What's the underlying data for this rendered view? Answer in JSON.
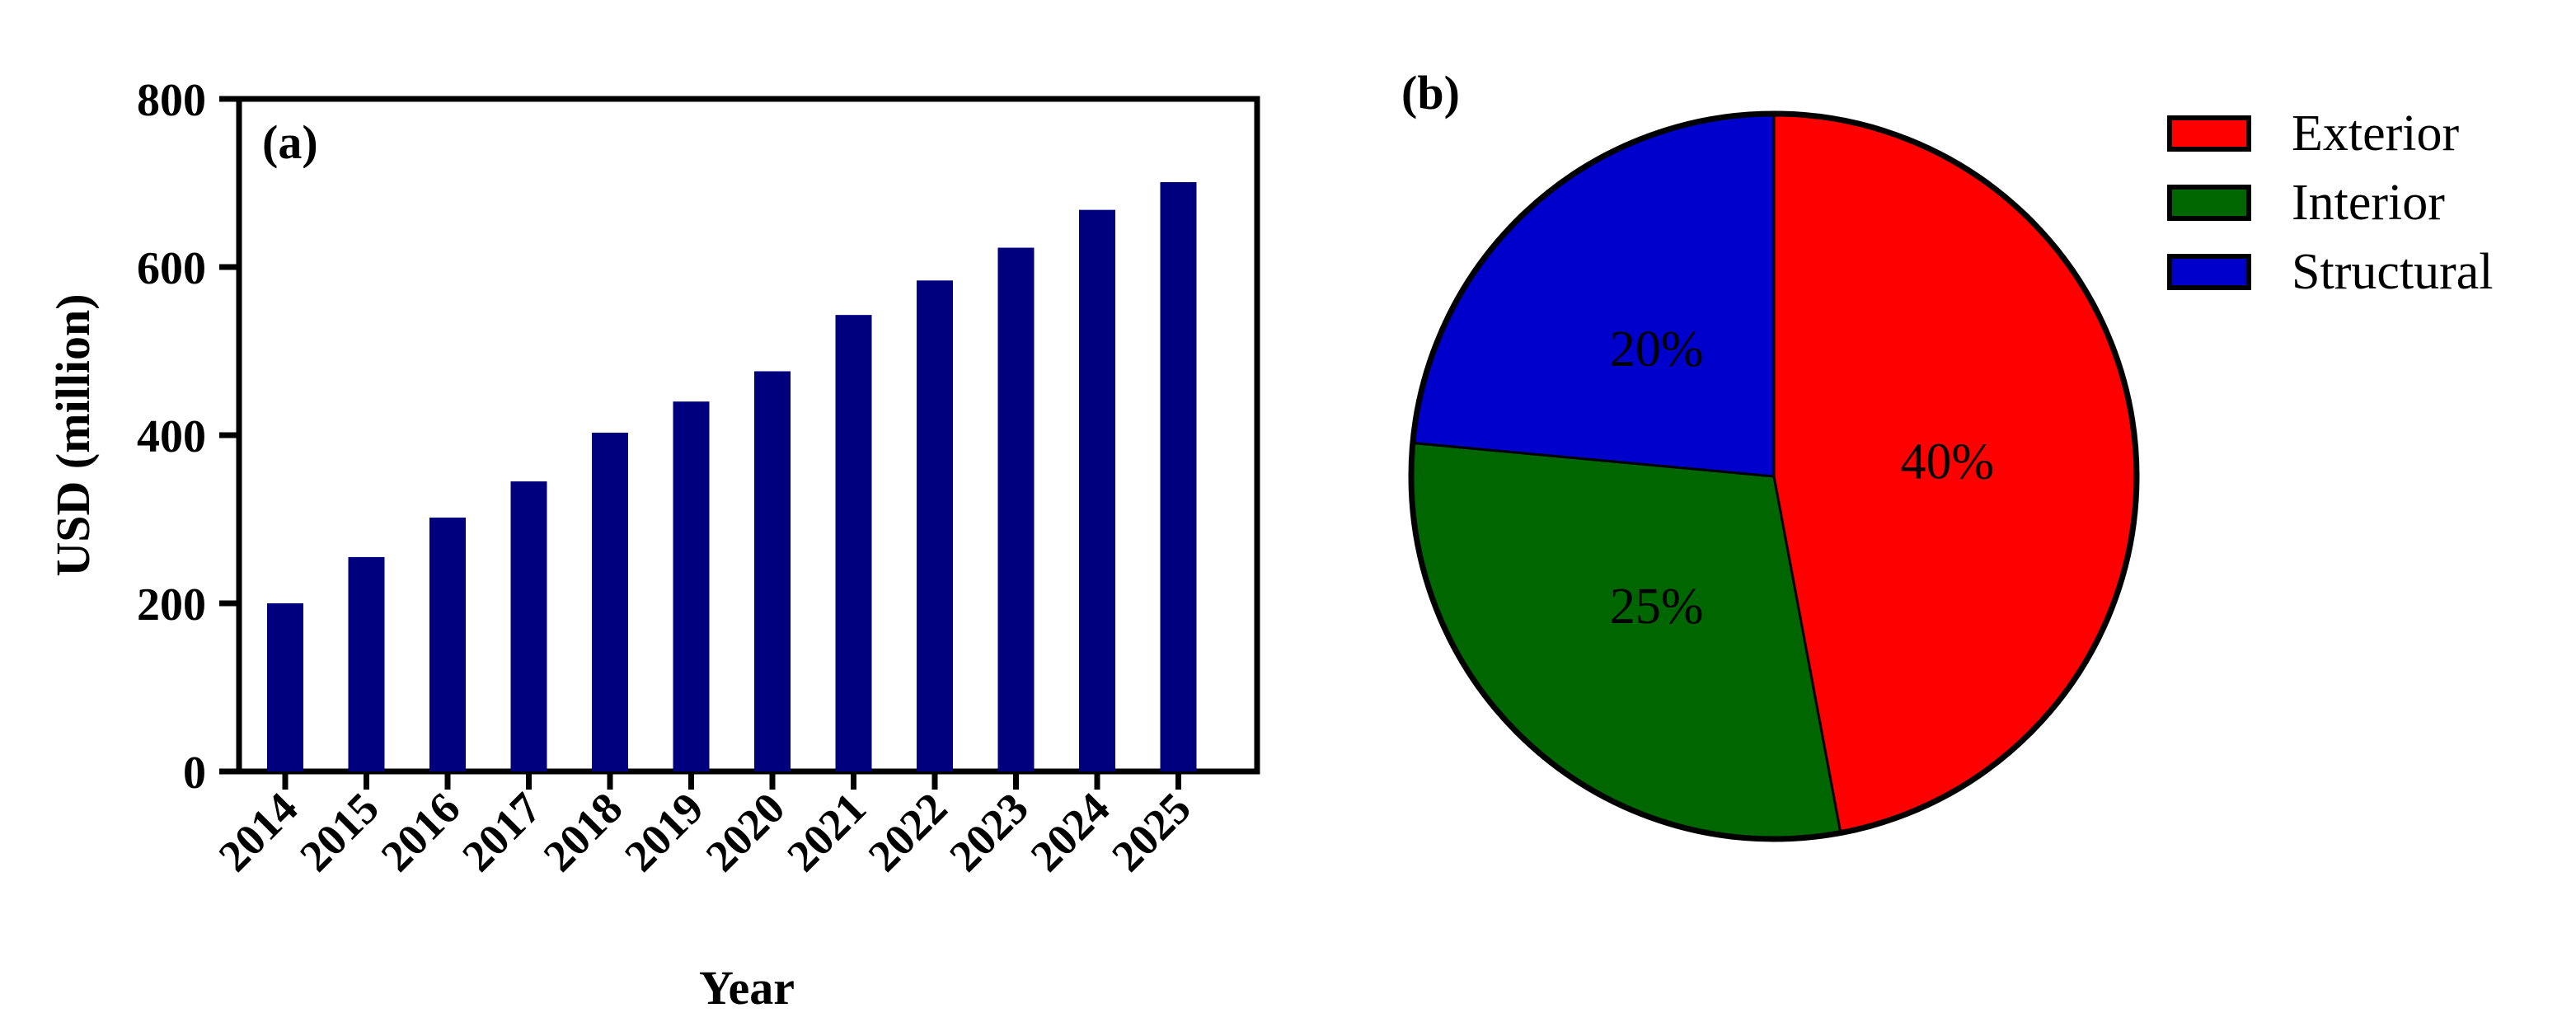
{
  "chart_data": [
    {
      "type": "bar",
      "panel_label": "(a)",
      "title": "",
      "xlabel": "Year",
      "ylabel": "USD (million)",
      "ylim": [
        0,
        800
      ],
      "yticks": [
        0,
        200,
        400,
        600,
        800
      ],
      "categories": [
        "2014",
        "2015",
        "2016",
        "2017",
        "2018",
        "2019",
        "2020",
        "2021",
        "2022",
        "2023",
        "2024",
        "2025"
      ],
      "values": [
        200,
        255,
        302,
        345,
        403,
        440,
        476,
        543,
        584,
        623,
        668,
        701
      ],
      "color": "#00007f",
      "grid": false
    },
    {
      "type": "pie",
      "panel_label": "(b)",
      "title": "",
      "legend_position": "top-right",
      "slices": [
        {
          "label": "Exterior",
          "value": 40,
          "display": "40%",
          "color": "#ff0000"
        },
        {
          "label": "Interior",
          "value": 25,
          "display": "25%",
          "color": "#006600"
        },
        {
          "label": "Structural",
          "value": 20,
          "display": "20%",
          "color": "#0000cc"
        }
      ]
    }
  ]
}
